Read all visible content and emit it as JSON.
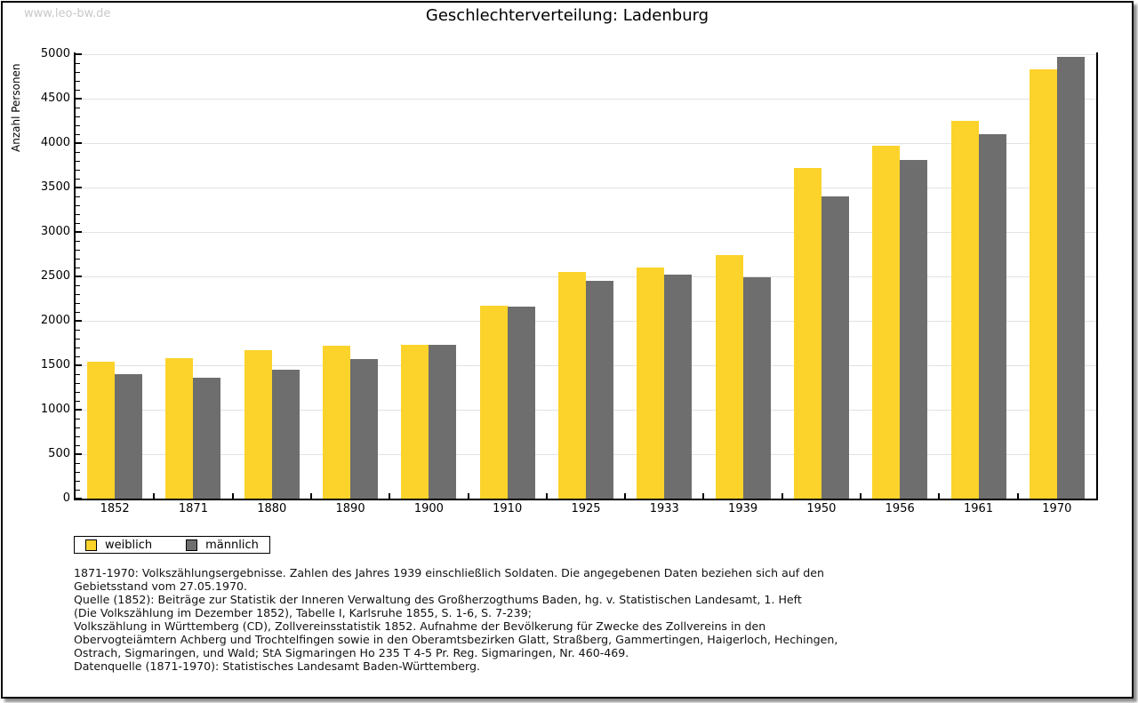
{
  "watermark": "www.leo-bw.de",
  "chart_data": {
    "type": "bar",
    "title": "Geschlechterverteilung: Ladenburg",
    "ylabel": "Anzahl Personen",
    "xlabel": "",
    "categories": [
      "1852",
      "1871",
      "1880",
      "1890",
      "1900",
      "1910",
      "1925",
      "1933",
      "1939",
      "1950",
      "1956",
      "1961",
      "1970"
    ],
    "series": [
      {
        "name": "weiblich",
        "color": "#fcd32b",
        "values": [
          1540,
          1585,
          1670,
          1720,
          1735,
          2170,
          2550,
          2605,
          2740,
          3725,
          3970,
          4250,
          4830
        ]
      },
      {
        "name": "männlich",
        "color": "#6e6e6e",
        "values": [
          1400,
          1360,
          1450,
          1575,
          1735,
          2165,
          2450,
          2520,
          2490,
          3405,
          3815,
          4105,
          4970
        ]
      }
    ],
    "ylim": [
      0,
      5000
    ],
    "ytick_major": 500,
    "ytick_minor": 100,
    "grid": true,
    "legend_position": "bottom-left"
  },
  "colors": {
    "weiblich": "#fcd32b",
    "maennlich": "#6e6e6e",
    "gridline": "#e2e2e2",
    "axis": "#000000",
    "watermark": "#c8c8c8"
  },
  "footnotes": [
    "1871-1970: Volkszählungsergebnisse. Zahlen des Jahres 1939 einschließlich Soldaten. Die angegebenen Daten beziehen sich auf den",
    "Gebietsstand vom 27.05.1970.",
    "Quelle (1852): Beiträge zur Statistik der Inneren Verwaltung des Großherzogthums Baden, hg. v. Statistischen Landesamt, 1. Heft",
    "(Die Volkszählung im Dezember 1852), Tabelle I, Karlsruhe 1855, S. 1-6, S. 7-239;",
    "Volkszählung in Württemberg (CD), Zollvereinsstatistik 1852. Aufnahme der Bevölkerung für Zwecke des Zollvereins in den",
    "Obervogteiämtern Achberg und Trochtelfingen sowie in den Oberamtsbezirken Glatt, Straßberg, Gammertingen, Haigerloch, Hechingen,",
    "Ostrach, Sigmaringen, und Wald; StA Sigmaringen Ho 235 T 4-5 Pr. Reg. Sigmaringen, Nr. 460-469."
  ],
  "datasource": "Datenquelle (1871-1970): Statistisches Landesamt Baden-Württemberg."
}
